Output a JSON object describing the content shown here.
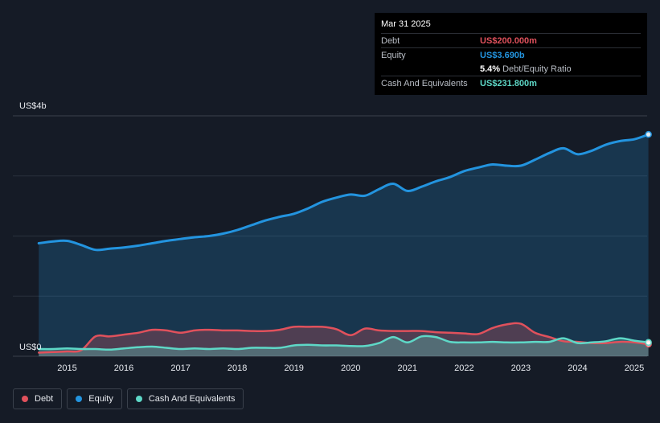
{
  "tooltip": {
    "date": "Mar 31 2025",
    "debt_label": "Debt",
    "debt_value": "US$200.000m",
    "equity_label": "Equity",
    "equity_value": "US$3.690b",
    "ratio_value": "5.4%",
    "ratio_label": "Debt/Equity Ratio",
    "cash_label": "Cash And Equivalents",
    "cash_value": "US$231.800m"
  },
  "legend": {
    "debt": "Debt",
    "equity": "Equity",
    "cash": "Cash And Equivalents"
  },
  "colors": {
    "debt": "#e0515c",
    "equity": "#2394df",
    "cash": "#5ed8c7",
    "background": "#151b26"
  },
  "chart_data": {
    "type": "area",
    "y_unit": "US$",
    "ylim": [
      0,
      4
    ],
    "y_ticks": [
      {
        "value": 4,
        "label": "US$4b"
      },
      {
        "value": 0,
        "label": "US$0"
      }
    ],
    "x_ticks": [
      "2015",
      "2016",
      "2017",
      "2018",
      "2019",
      "2020",
      "2021",
      "2022",
      "2023",
      "2024",
      "2025"
    ],
    "xlim": [
      2014.5,
      2025.25
    ],
    "grid": true,
    "legend_position": "bottom-left",
    "series": [
      {
        "name": "Equity",
        "key": "equity",
        "x": [
          2014.5,
          2014.75,
          2015.0,
          2015.25,
          2015.5,
          2015.75,
          2016.0,
          2016.25,
          2016.5,
          2016.75,
          2017.0,
          2017.25,
          2017.5,
          2017.75,
          2018.0,
          2018.25,
          2018.5,
          2018.75,
          2019.0,
          2019.25,
          2019.5,
          2019.75,
          2020.0,
          2020.25,
          2020.5,
          2020.75,
          2021.0,
          2021.25,
          2021.5,
          2021.75,
          2022.0,
          2022.25,
          2022.5,
          2022.75,
          2023.0,
          2023.25,
          2023.5,
          2023.75,
          2024.0,
          2024.25,
          2024.5,
          2024.75,
          2025.0,
          2025.25
        ],
        "values": [
          1.88,
          1.91,
          1.92,
          1.85,
          1.77,
          1.79,
          1.81,
          1.84,
          1.88,
          1.92,
          1.95,
          1.98,
          2.0,
          2.04,
          2.1,
          2.18,
          2.26,
          2.32,
          2.37,
          2.46,
          2.57,
          2.64,
          2.69,
          2.67,
          2.78,
          2.87,
          2.75,
          2.82,
          2.91,
          2.98,
          3.08,
          3.14,
          3.19,
          3.17,
          3.17,
          3.27,
          3.38,
          3.46,
          3.36,
          3.42,
          3.52,
          3.58,
          3.61,
          3.69
        ]
      },
      {
        "name": "Debt",
        "key": "debt",
        "x": [
          2014.5,
          2014.75,
          2015.0,
          2015.25,
          2015.5,
          2015.75,
          2016.0,
          2016.25,
          2016.5,
          2016.75,
          2017.0,
          2017.25,
          2017.5,
          2017.75,
          2018.0,
          2018.25,
          2018.5,
          2018.75,
          2019.0,
          2019.25,
          2019.5,
          2019.75,
          2020.0,
          2020.25,
          2020.5,
          2020.75,
          2021.0,
          2021.25,
          2021.5,
          2021.75,
          2022.0,
          2022.25,
          2022.5,
          2022.75,
          2023.0,
          2023.25,
          2023.5,
          2023.75,
          2024.0,
          2024.25,
          2024.5,
          2024.75,
          2025.0,
          2025.25
        ],
        "values": [
          0.06,
          0.07,
          0.08,
          0.1,
          0.33,
          0.33,
          0.36,
          0.39,
          0.44,
          0.43,
          0.39,
          0.43,
          0.44,
          0.43,
          0.43,
          0.42,
          0.42,
          0.44,
          0.49,
          0.49,
          0.49,
          0.45,
          0.35,
          0.46,
          0.43,
          0.42,
          0.42,
          0.42,
          0.4,
          0.39,
          0.38,
          0.37,
          0.47,
          0.53,
          0.54,
          0.39,
          0.32,
          0.25,
          0.24,
          0.22,
          0.22,
          0.24,
          0.23,
          0.2
        ]
      },
      {
        "name": "Cash And Equivalents",
        "key": "cash",
        "x": [
          2014.5,
          2014.75,
          2015.0,
          2015.25,
          2015.5,
          2015.75,
          2016.0,
          2016.25,
          2016.5,
          2016.75,
          2017.0,
          2017.25,
          2017.5,
          2017.75,
          2018.0,
          2018.25,
          2018.5,
          2018.75,
          2019.0,
          2019.25,
          2019.5,
          2019.75,
          2020.0,
          2020.25,
          2020.5,
          2020.75,
          2021.0,
          2021.25,
          2021.5,
          2021.75,
          2022.0,
          2022.25,
          2022.5,
          2022.75,
          2023.0,
          2023.25,
          2023.5,
          2023.75,
          2024.0,
          2024.25,
          2024.5,
          2024.75,
          2025.0,
          2025.25
        ],
        "values": [
          0.12,
          0.12,
          0.13,
          0.12,
          0.12,
          0.11,
          0.13,
          0.15,
          0.16,
          0.14,
          0.12,
          0.13,
          0.12,
          0.13,
          0.12,
          0.14,
          0.14,
          0.14,
          0.18,
          0.19,
          0.18,
          0.18,
          0.17,
          0.17,
          0.22,
          0.32,
          0.23,
          0.33,
          0.32,
          0.24,
          0.23,
          0.23,
          0.24,
          0.23,
          0.23,
          0.24,
          0.24,
          0.3,
          0.22,
          0.23,
          0.25,
          0.3,
          0.26,
          0.23
        ]
      }
    ]
  }
}
